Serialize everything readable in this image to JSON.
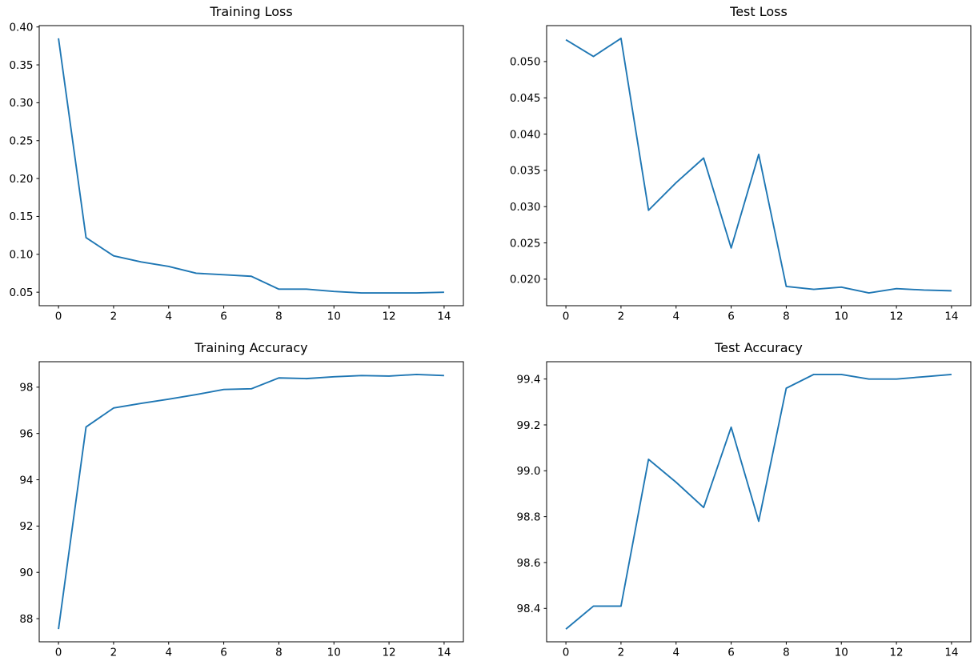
{
  "figure": {
    "background_color": "#ffffff",
    "grid_rows": 2,
    "grid_cols": 2
  },
  "chart_data": [
    {
      "type": "line",
      "title": "Training Loss",
      "x": [
        0,
        1,
        2,
        3,
        4,
        5,
        6,
        7,
        8,
        9,
        10,
        11,
        12,
        13,
        14
      ],
      "y": [
        0.385,
        0.122,
        0.098,
        0.09,
        0.084,
        0.075,
        0.073,
        0.071,
        0.054,
        0.054,
        0.051,
        0.049,
        0.049,
        0.049,
        0.05
      ],
      "xlim": [
        -0.7,
        14.7
      ],
      "ylim": [
        0.0322,
        0.4018
      ],
      "xtick_values": [
        0,
        2,
        4,
        6,
        8,
        10,
        12,
        14
      ],
      "xtick_labels": [
        "0",
        "2",
        "4",
        "6",
        "8",
        "10",
        "12",
        "14"
      ],
      "ytick_values": [
        0.05,
        0.1,
        0.15,
        0.2,
        0.25,
        0.3,
        0.35,
        0.4
      ],
      "ytick_labels": [
        "0.05",
        "0.10",
        "0.15",
        "0.20",
        "0.25",
        "0.30",
        "0.35",
        "0.40"
      ],
      "line_color": "#1f77b4",
      "grid": false
    },
    {
      "type": "line",
      "title": "Test Loss",
      "x": [
        0,
        1,
        2,
        3,
        4,
        5,
        6,
        7,
        8,
        9,
        10,
        11,
        12,
        13,
        14
      ],
      "y": [
        0.053,
        0.0507,
        0.0532,
        0.0295,
        0.0333,
        0.0367,
        0.0243,
        0.0372,
        0.019,
        0.0186,
        0.0189,
        0.0181,
        0.0187,
        0.0185,
        0.0184
      ],
      "xlim": [
        -0.7,
        14.7
      ],
      "ylim": [
        0.016345,
        0.054955
      ],
      "xtick_values": [
        0,
        2,
        4,
        6,
        8,
        10,
        12,
        14
      ],
      "xtick_labels": [
        "0",
        "2",
        "4",
        "6",
        "8",
        "10",
        "12",
        "14"
      ],
      "ytick_values": [
        0.02,
        0.025,
        0.03,
        0.035,
        0.04,
        0.045,
        0.05
      ],
      "ytick_labels": [
        "0.020",
        "0.025",
        "0.030",
        "0.035",
        "0.040",
        "0.045",
        "0.050"
      ],
      "line_color": "#1f77b4",
      "grid": false
    },
    {
      "type": "line",
      "title": "Training Accuracy",
      "x": [
        0,
        1,
        2,
        3,
        4,
        5,
        6,
        7,
        8,
        9,
        10,
        11,
        12,
        13,
        14
      ],
      "y": [
        87.55,
        96.28,
        97.1,
        97.3,
        97.48,
        97.68,
        97.9,
        97.93,
        98.4,
        98.37,
        98.45,
        98.5,
        98.48,
        98.55,
        98.5
      ],
      "xlim": [
        -0.7,
        14.7
      ],
      "ylim": [
        87.0,
        99.1
      ],
      "xtick_values": [
        0,
        2,
        4,
        6,
        8,
        10,
        12,
        14
      ],
      "xtick_labels": [
        "0",
        "2",
        "4",
        "6",
        "8",
        "10",
        "12",
        "14"
      ],
      "ytick_values": [
        88,
        90,
        92,
        94,
        96,
        98
      ],
      "ytick_labels": [
        "88",
        "90",
        "92",
        "94",
        "96",
        "98"
      ],
      "line_color": "#1f77b4",
      "grid": false
    },
    {
      "type": "line",
      "title": "Test Accuracy",
      "x": [
        0,
        1,
        2,
        3,
        4,
        5,
        6,
        7,
        8,
        9,
        10,
        11,
        12,
        13,
        14
      ],
      "y": [
        98.31,
        98.41,
        98.41,
        99.05,
        98.95,
        98.84,
        99.19,
        98.78,
        99.36,
        99.42,
        99.42,
        99.4,
        99.4,
        99.41,
        99.42
      ],
      "xlim": [
        -0.7,
        14.7
      ],
      "ylim": [
        98.2545,
        99.4755
      ],
      "xtick_values": [
        0,
        2,
        4,
        6,
        8,
        10,
        12,
        14
      ],
      "xtick_labels": [
        "0",
        "2",
        "4",
        "6",
        "8",
        "10",
        "12",
        "14"
      ],
      "ytick_values": [
        98.4,
        98.6,
        98.8,
        99.0,
        99.2,
        99.4
      ],
      "ytick_labels": [
        "98.4",
        "98.6",
        "98.8",
        "99.0",
        "99.2",
        "99.4"
      ],
      "line_color": "#1f77b4",
      "grid": false
    }
  ]
}
